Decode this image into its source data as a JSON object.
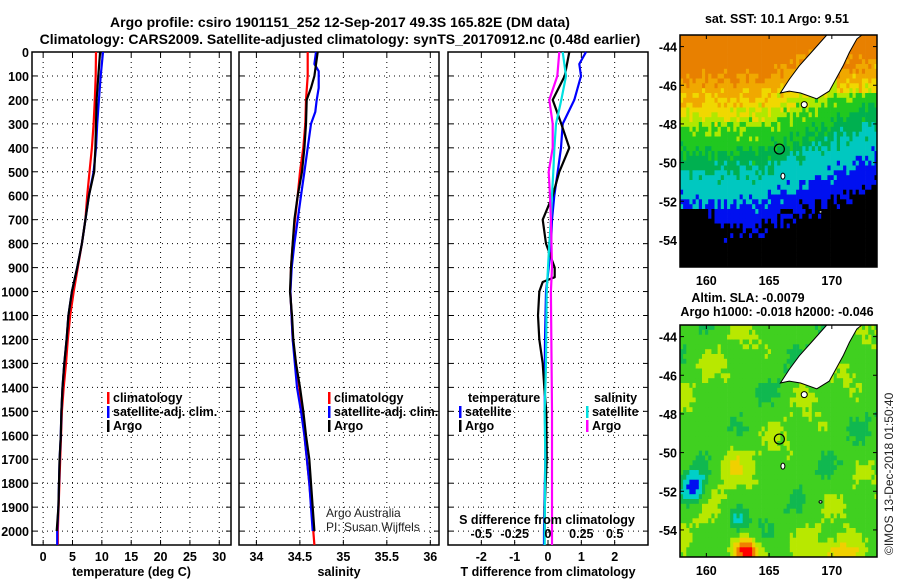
{
  "title": {
    "line1": "Argo profile: csiro 1901151_252 12-Sep-2017 49.3S 165.82E (DM data)",
    "line2": "Climatology: CARS2009. Satellite-adjusted climatology: synTS_20170912.nc (0.48d earlier)"
  },
  "colors": {
    "climatology": "#ff0000",
    "satellite": "#0000ff",
    "argo": "#000000",
    "sal_satellite": "#00e0e0",
    "sal_argo": "#ff00ff"
  },
  "chart_data": [
    {
      "type": "line",
      "name": "temperature",
      "xlabel": "temperature (deg C)",
      "ylabel": "depth",
      "xlim": [
        -1.9,
        32
      ],
      "ylim": [
        0,
        2058
      ],
      "y_inverted": true,
      "xticks": [
        "0",
        "5",
        "10",
        "15",
        "20",
        "25",
        "30"
      ],
      "yticks": [
        "0",
        "100",
        "200",
        "300",
        "400",
        "500",
        "600",
        "700",
        "800",
        "900",
        "1000",
        "1100",
        "1200",
        "1300",
        "1400",
        "1500",
        "1600",
        "1700",
        "1800",
        "1900",
        "2000"
      ],
      "grid": true,
      "legend": {
        "placement": "bottom-right",
        "entries": [
          "climatology",
          "satellite-adj. clim.",
          "Argo"
        ]
      },
      "series": [
        {
          "name": "climatology",
          "color_key": "climatology",
          "depth": [
            0,
            100,
            200,
            300,
            400,
            500,
            600,
            700,
            800,
            900,
            1000,
            1100,
            1200,
            1300,
            1400,
            1500,
            1700,
            2000,
            2058
          ],
          "values": [
            9.0,
            8.95,
            8.8,
            8.6,
            8.3,
            7.9,
            7.5,
            7.2,
            6.6,
            5.9,
            5.2,
            4.6,
            4.2,
            3.9,
            3.5,
            3.2,
            2.9,
            2.5,
            2.5
          ]
        },
        {
          "name": "satellite-adj. clim.",
          "color_key": "satellite",
          "depth": [
            0,
            100,
            200,
            300,
            400,
            500,
            600,
            700,
            800,
            900,
            1000,
            1100,
            1200,
            1300,
            1400,
            1500,
            1600,
            1700,
            1800,
            1900,
            2000,
            2058
          ],
          "values": [
            10.2,
            9.8,
            9.5,
            9.2,
            9.0,
            8.6,
            7.8,
            7.2,
            6.6,
            5.8,
            4.9,
            4.3,
            4.0,
            3.6,
            3.3,
            3.1,
            3.0,
            2.8,
            2.7,
            2.6,
            2.4,
            2.4
          ]
        },
        {
          "name": "Argo",
          "color_key": "argo",
          "depth": [
            0,
            100,
            200,
            300,
            400,
            500,
            600,
            700,
            800,
            900,
            1000,
            1100,
            1200,
            1300,
            1400,
            1500,
            1600,
            1700,
            1800,
            1900,
            2000
          ],
          "values": [
            9.7,
            9.4,
            9.1,
            9.0,
            8.9,
            8.7,
            7.8,
            7.2,
            6.6,
            5.8,
            4.9,
            4.3,
            4.0,
            3.6,
            3.3,
            3.1,
            3.0,
            2.8,
            2.7,
            2.6,
            2.3
          ]
        }
      ]
    },
    {
      "type": "line",
      "name": "salinity",
      "xlabel": "salinity",
      "xlim": [
        33.8,
        36.1
      ],
      "ylim": [
        0,
        2058
      ],
      "y_inverted": true,
      "xticks": [
        "34",
        "34.5",
        "35",
        "35.5",
        "36"
      ],
      "grid": true,
      "legend": {
        "placement": "bottom-right",
        "entries": [
          "climatology",
          "satellite-adj. clim.",
          "Argo"
        ]
      },
      "annotation": [
        "Argo Australia",
        "PI: Susan Wijffels"
      ],
      "series": [
        {
          "name": "climatology",
          "color_key": "climatology",
          "depth": [
            0,
            100,
            200,
            300,
            400,
            500,
            600,
            700,
            800,
            900,
            1000,
            1200,
            1400,
            1600,
            1800,
            2000,
            2058
          ],
          "values": [
            34.59,
            34.59,
            34.57,
            34.563,
            34.54,
            34.502,
            34.475,
            34.444,
            34.418,
            34.398,
            34.391,
            34.418,
            34.494,
            34.552,
            34.609,
            34.655,
            34.667
          ]
        },
        {
          "name": "satellite-adj. clim.",
          "color_key": "satellite",
          "depth": [
            0,
            50,
            80,
            150,
            200,
            250,
            300,
            400,
            500,
            600,
            700,
            800,
            900,
            1000,
            1200,
            1400,
            1500,
            1600,
            1800,
            2000
          ],
          "values": [
            34.686,
            34.667,
            34.716,
            34.716,
            34.693,
            34.678,
            34.628,
            34.59,
            34.552,
            34.513,
            34.475,
            34.437,
            34.406,
            34.391,
            34.418,
            34.467,
            34.513,
            34.552,
            34.609,
            34.647
          ]
        },
        {
          "name": "Argo",
          "color_key": "argo",
          "depth": [
            0,
            100,
            150,
            200,
            300,
            400,
            500,
            600,
            700,
            800,
            900,
            1000,
            1100,
            1200,
            1300,
            1400,
            1500,
            1600,
            1700,
            1800,
            1900,
            2000
          ],
          "values": [
            34.705,
            34.667,
            34.628,
            34.579,
            34.571,
            34.552,
            34.525,
            34.475,
            34.437,
            34.418,
            34.398,
            34.387,
            34.41,
            34.425,
            34.456,
            34.502,
            34.54,
            34.571,
            34.609,
            34.628,
            34.647,
            34.667
          ]
        }
      ]
    },
    {
      "type": "line",
      "name": "differences",
      "xlabel": "T difference from climatology",
      "xlim": [
        -3,
        3
      ],
      "xticks": [
        "-2",
        "-1",
        "0",
        "1",
        "2"
      ],
      "x2label": "S difference from climatology",
      "x2lim": [
        -0.75,
        0.75
      ],
      "x2ticks": [
        "-0.5",
        "-0.25",
        "0",
        "0.25",
        "0.5"
      ],
      "ylim": [
        0,
        2058
      ],
      "y_inverted": true,
      "grid": true,
      "legend": {
        "temperature": {
          "heading": "temperature",
          "entries": [
            "satellite",
            "Argo"
          ]
        },
        "salinity": {
          "heading": "salinity",
          "entries": [
            "satellite",
            "Argo"
          ]
        }
      },
      "series": [
        {
          "name": "temperature satellite",
          "axis": "T",
          "color_key": "satellite",
          "depth": [
            0,
            50,
            100,
            200,
            300,
            400,
            500,
            600,
            700,
            800,
            900,
            1000,
            1200,
            1400,
            1700,
            2000,
            2058
          ],
          "values": [
            1.14,
            0.94,
            0.99,
            0.79,
            0.44,
            0.39,
            0.29,
            0.19,
            0.12,
            0.09,
            0.02,
            -0.06,
            -0.09,
            -0.1,
            -0.08,
            -0.12,
            -0.12
          ]
        },
        {
          "name": "temperature Argo",
          "axis": "T",
          "color_key": "argo",
          "depth": [
            0,
            100,
            200,
            300,
            400,
            500,
            600,
            700,
            800,
            900,
            940,
            960,
            1000,
            1100,
            1200,
            1300,
            1400,
            1500,
            1700,
            1900,
            2000
          ],
          "values": [
            0.64,
            0.5,
            0.14,
            0.4,
            0.64,
            0.34,
            0.14,
            -0.16,
            -0.06,
            0.2,
            0.2,
            -0.16,
            -0.26,
            -0.3,
            -0.26,
            -0.16,
            -0.11,
            -0.05,
            -0.04,
            -0.1,
            -0.1
          ]
        },
        {
          "name": "salinity satellite",
          "axis": "S",
          "color_key": "sal_satellite",
          "depth": [
            0,
            100,
            200,
            300,
            400,
            500,
            600,
            700,
            800,
            900,
            1000,
            1300,
            1500,
            1700,
            2000,
            2058
          ],
          "values": [
            0.11,
            0.135,
            0.1,
            0.06,
            0.048,
            0.04,
            0.03,
            0.022,
            0.01,
            0.0,
            -0.01,
            -0.015,
            -0.025,
            -0.02,
            -0.025,
            -0.025
          ]
        },
        {
          "name": "salinity Argo",
          "axis": "S",
          "color_key": "sal_argo",
          "depth": [
            0,
            100,
            200,
            300,
            400,
            500,
            600,
            700,
            900,
            1000,
            1500,
            2000,
            2058
          ],
          "values": [
            0.085,
            0.07,
            0.01,
            0.035,
            0.035,
            0.005,
            0.015,
            0.022,
            0.03,
            0.022,
            0.03,
            0.03,
            0.03
          ]
        }
      ]
    },
    {
      "type": "heatmap",
      "name": "satellite SST map",
      "title": "sat. SST: 10.1 Argo: 9.51",
      "xlim": [
        157.9,
        173.6
      ],
      "ylim": [
        -55.4,
        -43.4
      ],
      "xticks": [
        "160",
        "165",
        "170"
      ],
      "yticks": [
        "-44",
        "-46",
        "-48",
        "-50",
        "-52",
        "-54"
      ],
      "marker": {
        "lon": 165.82,
        "lat": -49.3
      }
    },
    {
      "type": "heatmap",
      "name": "altimetry SLA map",
      "title": "Altim. SLA: -0.0079",
      "subtitle": "Argo h1000: -0.018 h2000: -0.046",
      "xlim": [
        157.9,
        173.6
      ],
      "ylim": [
        -55.4,
        -43.4
      ],
      "xticks": [
        "160",
        "165",
        "170"
      ],
      "yticks": [
        "-44",
        "-46",
        "-48",
        "-50",
        "-52",
        "-54"
      ],
      "marker": {
        "lon": 165.82,
        "lat": -49.3
      }
    }
  ],
  "credit": "©IMOS 13-Dec-2018 01:50:40"
}
